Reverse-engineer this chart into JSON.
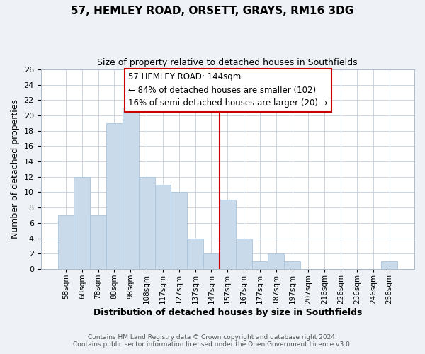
{
  "title": "57, HEMLEY ROAD, ORSETT, GRAYS, RM16 3DG",
  "subtitle": "Size of property relative to detached houses in Southfields",
  "xlabel": "Distribution of detached houses by size in Southfields",
  "ylabel": "Number of detached properties",
  "bar_labels": [
    "58sqm",
    "68sqm",
    "78sqm",
    "88sqm",
    "98sqm",
    "108sqm",
    "117sqm",
    "127sqm",
    "137sqm",
    "147sqm",
    "157sqm",
    "167sqm",
    "177sqm",
    "187sqm",
    "197sqm",
    "207sqm",
    "216sqm",
    "226sqm",
    "236sqm",
    "246sqm",
    "256sqm"
  ],
  "bar_values": [
    7,
    12,
    7,
    19,
    21,
    12,
    11,
    10,
    4,
    2,
    9,
    4,
    1,
    2,
    1,
    0,
    0,
    0,
    0,
    0,
    1
  ],
  "bar_color": "#c9daea",
  "bar_edge_color": "#aac4da",
  "vline_index": 9.5,
  "vline_color": "#cc0000",
  "annotation_line1": "57 HEMLEY ROAD: 144sqm",
  "annotation_line2": "← 84% of detached houses are smaller (102)",
  "annotation_line3": "16% of semi-detached houses are larger (20) →",
  "ylim": [
    0,
    26
  ],
  "yticks": [
    0,
    2,
    4,
    6,
    8,
    10,
    12,
    14,
    16,
    18,
    20,
    22,
    24,
    26
  ],
  "footer1": "Contains HM Land Registry data © Crown copyright and database right 2024.",
  "footer2": "Contains public sector information licensed under the Open Government Licence v3.0.",
  "bg_color": "#eef2f7",
  "plot_bg_color": "#ffffff",
  "grid_color": "#ccd5de",
  "title_fontsize": 11,
  "subtitle_fontsize": 9,
  "xlabel_fontsize": 9,
  "ylabel_fontsize": 9,
  "xtick_fontsize": 7.5,
  "ytick_fontsize": 8,
  "footer_fontsize": 6.5,
  "annot_fontsize": 8.5
}
